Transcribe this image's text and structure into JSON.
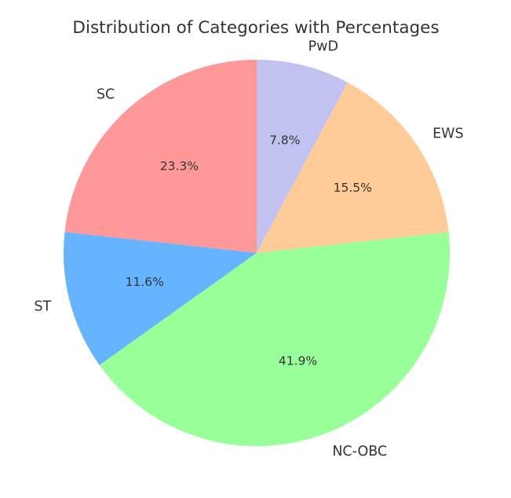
{
  "chart_data": {
    "type": "pie",
    "title": "Distribution of Categories with Percentages",
    "start_angle_deg": 90,
    "direction": "counterclockwise",
    "slices": [
      {
        "label": "SC",
        "value": 23.3,
        "pct_label": "23.3%",
        "color": "#ff9999"
      },
      {
        "label": "ST",
        "value": 11.6,
        "pct_label": "11.6%",
        "color": "#66b3ff"
      },
      {
        "label": "NC-OBC",
        "value": 41.9,
        "pct_label": "41.9%",
        "color": "#99ff99"
      },
      {
        "label": "EWS",
        "value": 15.5,
        "pct_label": "15.5%",
        "color": "#ffcc99"
      },
      {
        "label": "PwD",
        "value": 7.8,
        "pct_label": "7.8%",
        "color": "#c2c2f0"
      }
    ]
  }
}
